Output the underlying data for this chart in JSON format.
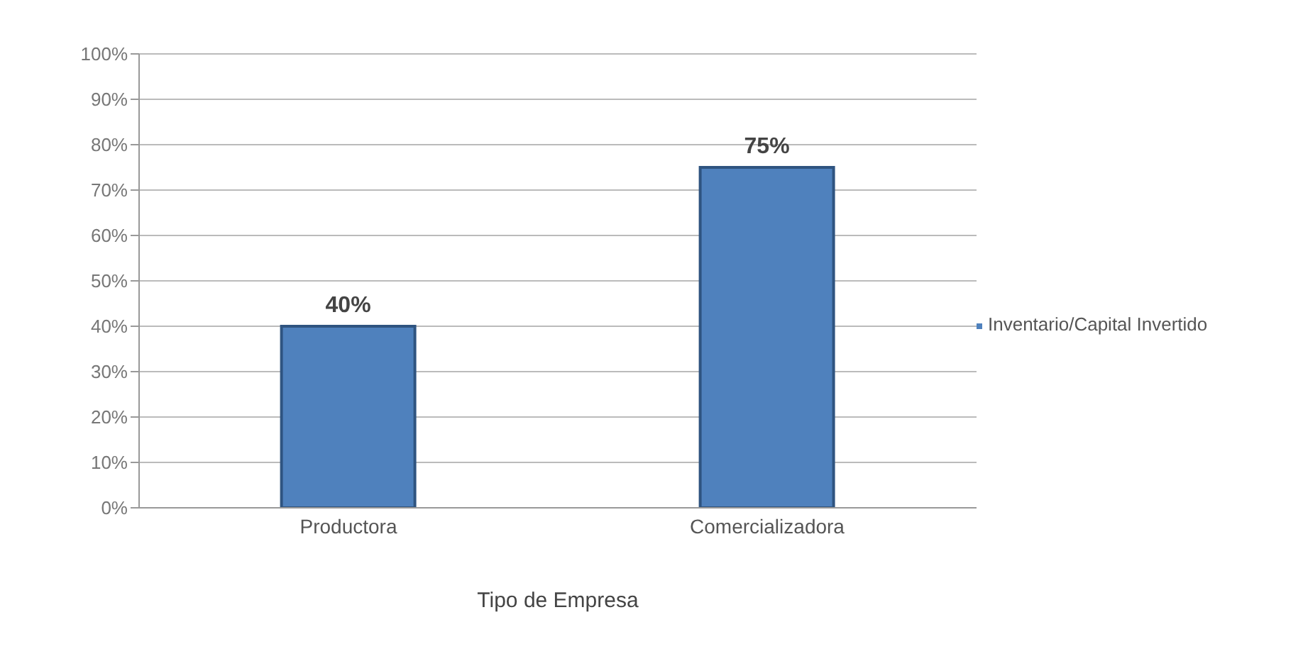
{
  "chart_data": {
    "type": "bar",
    "xlabel": "Tipo de Empresa",
    "categories": [
      "Productora",
      "Comercializadora"
    ],
    "series": [
      {
        "name": "Inventario/Capital Invertido",
        "color": "#4f81bd",
        "values": [
          40,
          75
        ],
        "value_labels": [
          "40%",
          "75%"
        ]
      }
    ],
    "ylim": [
      0,
      100
    ],
    "yticks": [
      {
        "value": 0,
        "label": "0%"
      },
      {
        "value": 10,
        "label": "10%"
      },
      {
        "value": 20,
        "label": "20%"
      },
      {
        "value": 30,
        "label": "30%"
      },
      {
        "value": 40,
        "label": "40%"
      },
      {
        "value": 50,
        "label": "50%"
      },
      {
        "value": 60,
        "label": "60%"
      },
      {
        "value": 70,
        "label": "70%"
      },
      {
        "value": 80,
        "label": "80%"
      },
      {
        "value": 90,
        "label": "90%"
      },
      {
        "value": 100,
        "label": "100%"
      }
    ],
    "grid": "y",
    "legend": "right"
  }
}
